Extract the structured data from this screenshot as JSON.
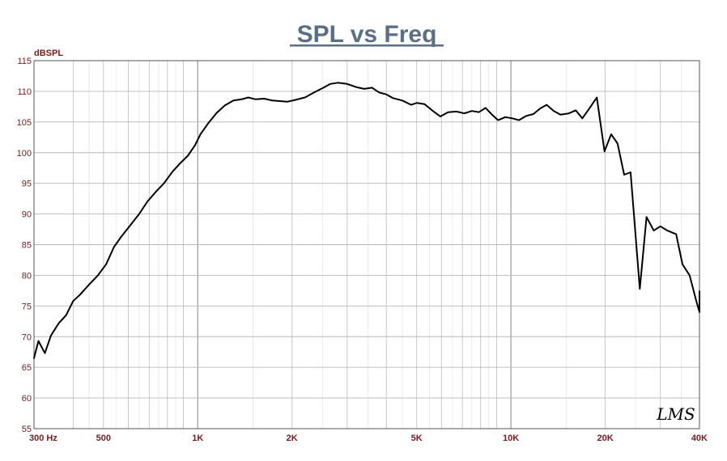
{
  "chart_data": {
    "type": "line",
    "title": "SPL vs Freq",
    "ylabel": "dBSPL",
    "xscale": "log",
    "xlim": [
      300,
      40000
    ],
    "ylim": [
      55,
      115
    ],
    "grid": true,
    "y_ticks": [
      "115",
      "110",
      "105",
      "100",
      "95",
      "90",
      "85",
      "80",
      "75",
      "70",
      "65",
      "60",
      "55"
    ],
    "x_ticks": [
      {
        "value": 300,
        "label": "300  Hz"
      },
      {
        "value": 500,
        "label": "500"
      },
      {
        "value": 1000,
        "label": "1K"
      },
      {
        "value": 2000,
        "label": "2K"
      },
      {
        "value": 5000,
        "label": "5K"
      },
      {
        "value": 10000,
        "label": "10K"
      },
      {
        "value": 20000,
        "label": "20K"
      },
      {
        "value": 40000,
        "label": "40K"
      }
    ],
    "series": [
      {
        "color": "#000000",
        "points": [
          [
            300,
            66.5
          ],
          [
            310,
            69.3
          ],
          [
            325,
            67.3
          ],
          [
            340,
            70.2
          ],
          [
            360,
            72.2
          ],
          [
            380,
            73.5
          ],
          [
            400,
            75.8
          ],
          [
            420,
            76.8
          ],
          [
            450,
            78.5
          ],
          [
            480,
            80.0
          ],
          [
            510,
            81.8
          ],
          [
            540,
            84.6
          ],
          [
            570,
            86.3
          ],
          [
            610,
            88.2
          ],
          [
            650,
            90.0
          ],
          [
            690,
            92.0
          ],
          [
            740,
            93.8
          ],
          [
            780,
            95.0
          ],
          [
            830,
            96.9
          ],
          [
            880,
            98.3
          ],
          [
            930,
            99.5
          ],
          [
            980,
            101.2
          ],
          [
            1020,
            103.0
          ],
          [
            1080,
            104.8
          ],
          [
            1150,
            106.5
          ],
          [
            1220,
            107.7
          ],
          [
            1300,
            108.5
          ],
          [
            1380,
            108.7
          ],
          [
            1450,
            109.0
          ],
          [
            1530,
            108.7
          ],
          [
            1630,
            108.8
          ],
          [
            1730,
            108.5
          ],
          [
            1830,
            108.4
          ],
          [
            1930,
            108.3
          ],
          [
            2050,
            108.6
          ],
          [
            2200,
            109.0
          ],
          [
            2350,
            109.8
          ],
          [
            2500,
            110.5
          ],
          [
            2650,
            111.2
          ],
          [
            2800,
            111.4
          ],
          [
            3000,
            111.2
          ],
          [
            3200,
            110.7
          ],
          [
            3400,
            110.4
          ],
          [
            3600,
            110.6
          ],
          [
            3800,
            109.8
          ],
          [
            4000,
            109.5
          ],
          [
            4200,
            108.9
          ],
          [
            4500,
            108.5
          ],
          [
            4800,
            107.8
          ],
          [
            5000,
            108.1
          ],
          [
            5300,
            107.9
          ],
          [
            5600,
            106.9
          ],
          [
            5950,
            105.9
          ],
          [
            6300,
            106.6
          ],
          [
            6700,
            106.7
          ],
          [
            7100,
            106.4
          ],
          [
            7500,
            106.8
          ],
          [
            7900,
            106.6
          ],
          [
            8300,
            107.3
          ],
          [
            8700,
            106.2
          ],
          [
            9100,
            105.3
          ],
          [
            9600,
            105.8
          ],
          [
            10100,
            105.6
          ],
          [
            10600,
            105.3
          ],
          [
            11200,
            106.0
          ],
          [
            11800,
            106.3
          ],
          [
            12400,
            107.2
          ],
          [
            13000,
            107.8
          ],
          [
            13700,
            106.8
          ],
          [
            14400,
            106.2
          ],
          [
            15300,
            106.4
          ],
          [
            16100,
            106.9
          ],
          [
            16900,
            105.6
          ],
          [
            17800,
            107.2
          ],
          [
            18800,
            109.0
          ],
          [
            19900,
            100.2
          ],
          [
            20900,
            103.0
          ],
          [
            21900,
            101.5
          ],
          [
            23000,
            96.4
          ],
          [
            24100,
            96.8
          ],
          [
            25800,
            77.8
          ],
          [
            27100,
            89.5
          ],
          [
            28600,
            87.3
          ],
          [
            30000,
            88.0
          ],
          [
            31600,
            87.3
          ],
          [
            33700,
            86.7
          ],
          [
            35300,
            81.8
          ],
          [
            37200,
            80.0
          ],
          [
            39000,
            76.0
          ],
          [
            41100,
            74.0
          ],
          [
            43200,
            76.0
          ],
          [
            45600,
            77.4
          ]
        ]
      }
    ]
  },
  "logo": {
    "text": "LMS"
  }
}
